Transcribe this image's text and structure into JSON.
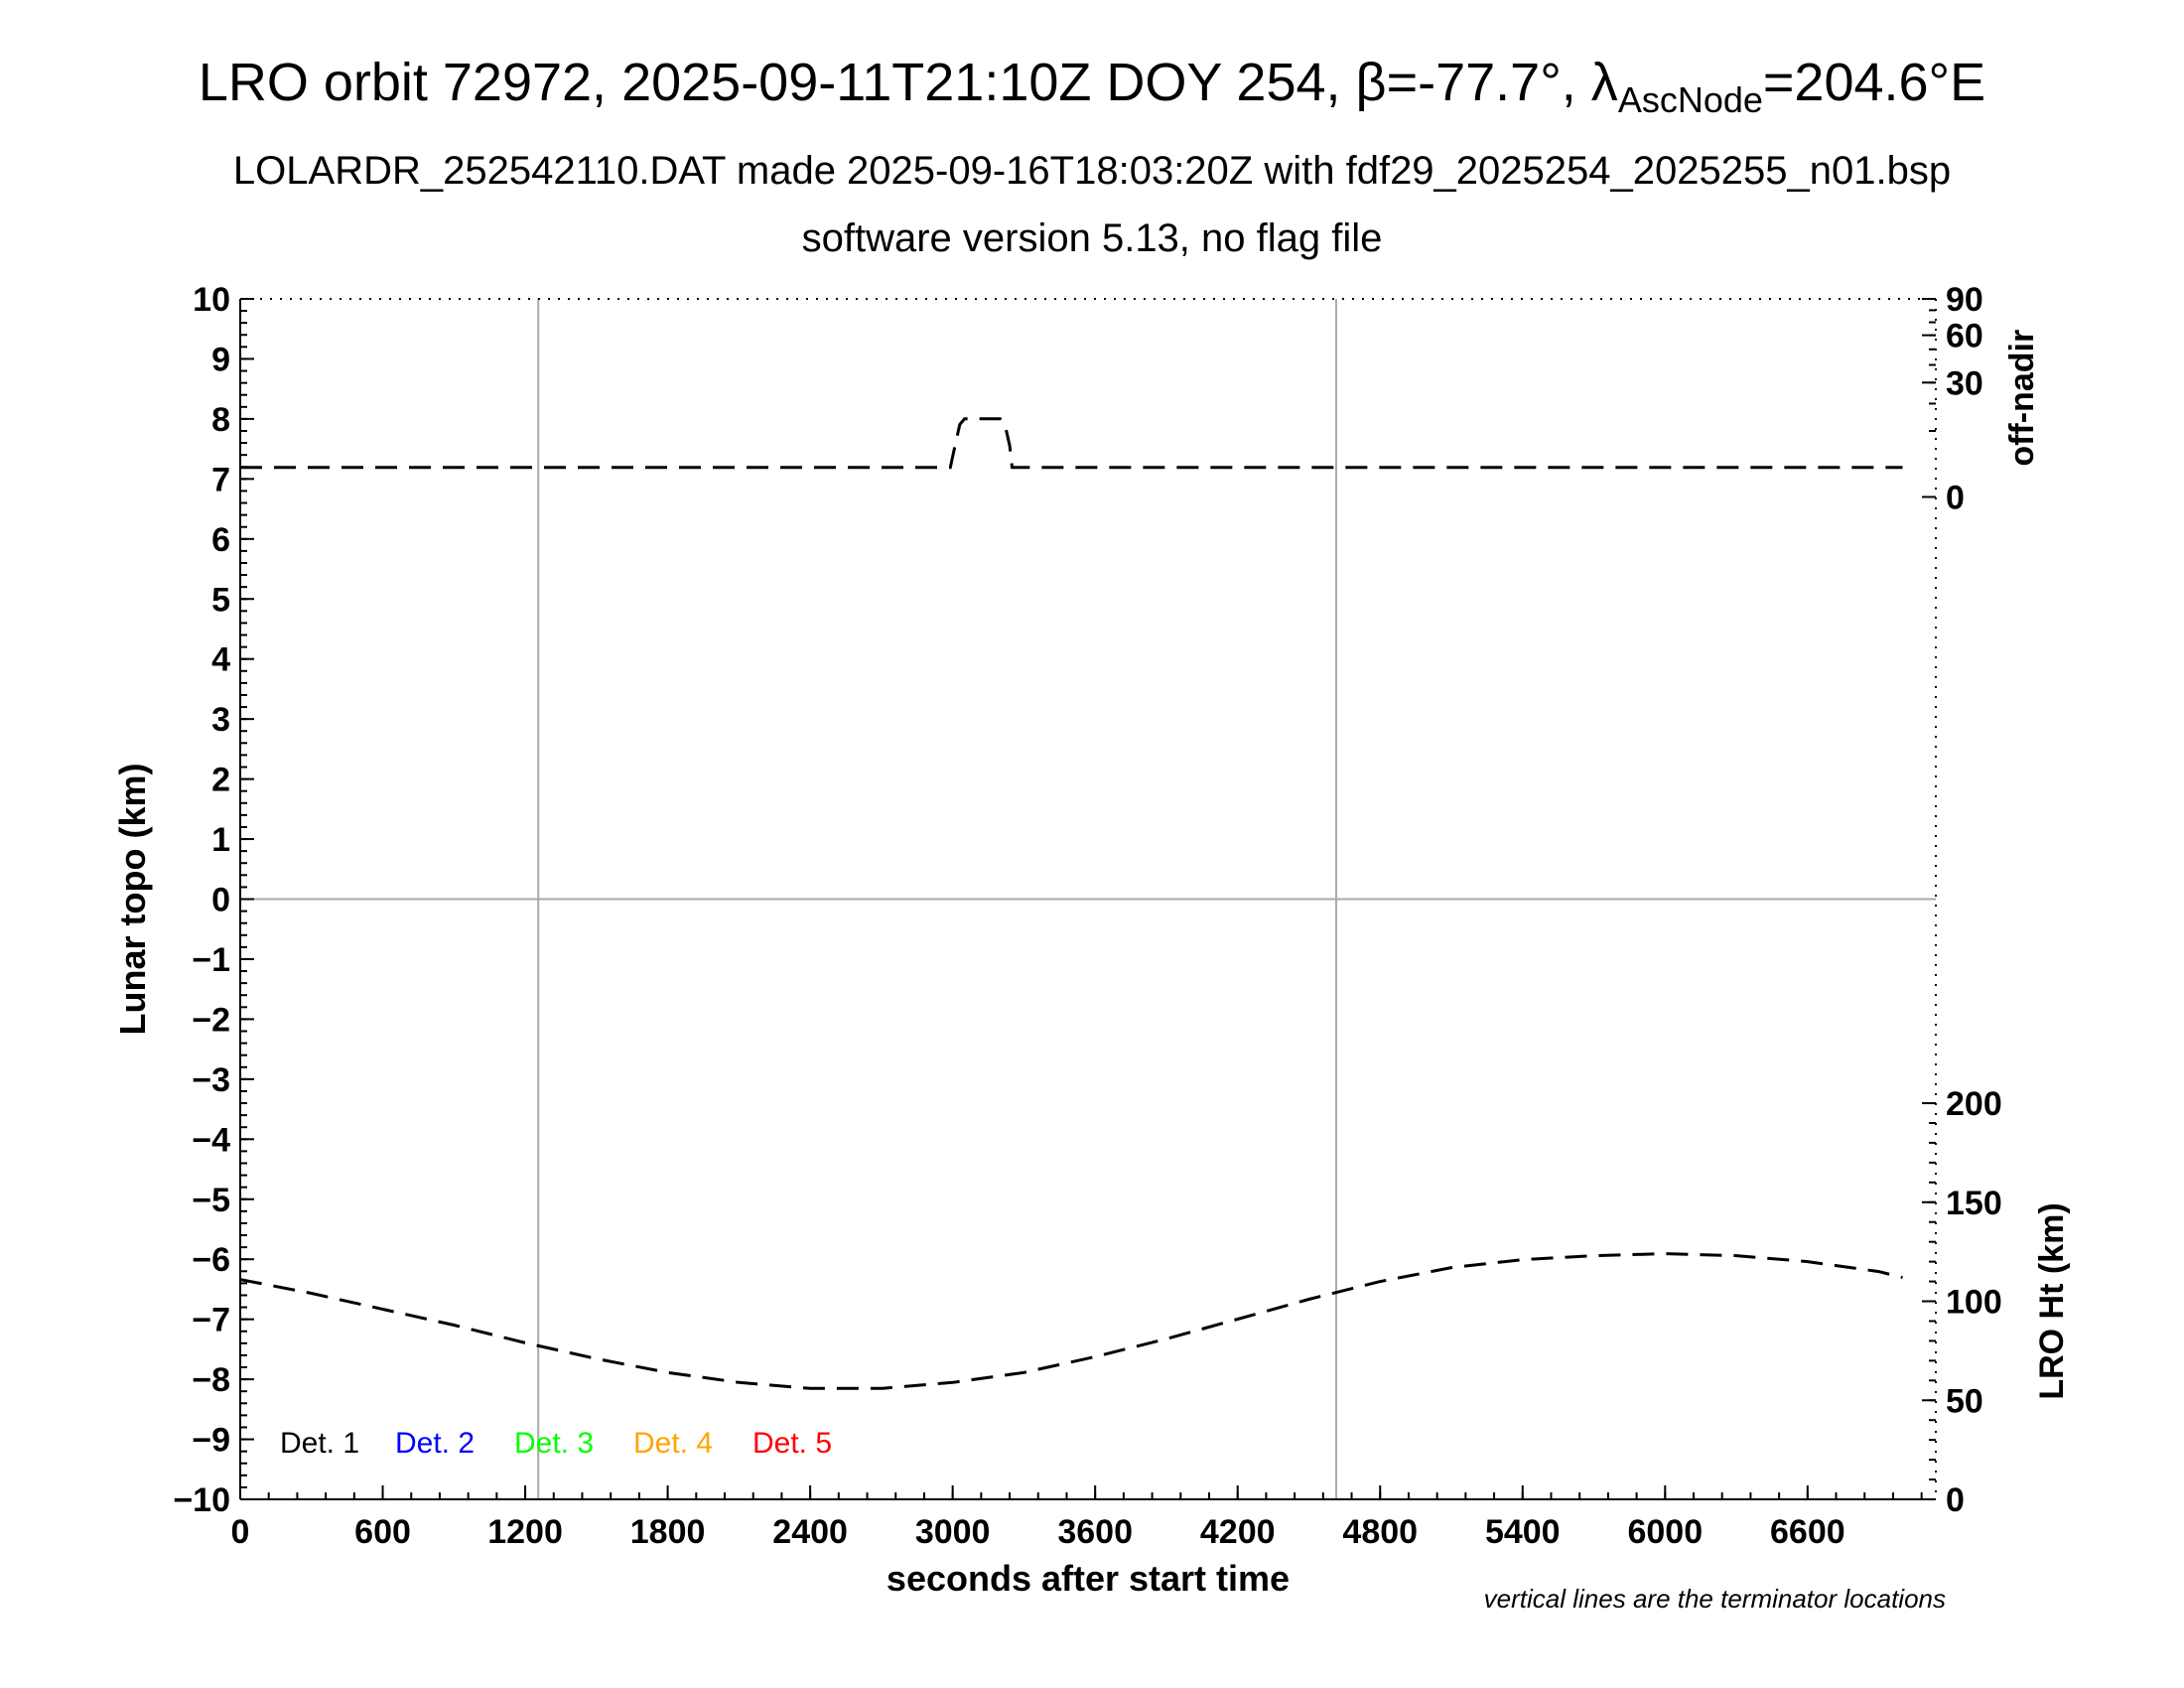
{
  "title": {
    "main_prefix": "LRO orbit 72972, 2025-09-11T21:10Z DOY 254, β=-77.7°, λ",
    "main_subscript": "AscNode",
    "main_suffix": "=204.6°E",
    "line2": "LOLARDR_252542110.DAT made 2025-09-16T18:03:20Z with fdf29_2025254_2025255_n01.bsp",
    "line3": "software version 5.13, no flag file"
  },
  "footnote": "vertical lines are the terminator locations",
  "chart_data": {
    "type": "line",
    "xlabel": "seconds after start time",
    "ylabel": "Lunar topo (km)",
    "xlim": [
      0,
      7140
    ],
    "ylim": [
      -10,
      10
    ],
    "x_ticks": [
      0,
      600,
      1200,
      1800,
      2400,
      3000,
      3600,
      4200,
      4800,
      5400,
      6000,
      6600
    ],
    "y_ticks": [
      10,
      9,
      8,
      7,
      6,
      5,
      4,
      3,
      2,
      1,
      0,
      -1,
      -2,
      -3,
      -4,
      -5,
      -6,
      -7,
      -8,
      -9,
      -10
    ],
    "y_tick_labels": [
      "10",
      "9",
      "8",
      "7",
      "6",
      "5",
      "4",
      "3",
      "2",
      "1",
      "0",
      "−1",
      "−2",
      "−3",
      "−4",
      "−5",
      "−6",
      "−7",
      "−8",
      "−9",
      "−10"
    ],
    "grid": "vertical lines at terminator locations, horizontal line at 0 km",
    "terminator_x": [
      1255,
      4615
    ],
    "zero_line_y": 0,
    "right_axis_top": {
      "label": "off-nadir",
      "ticks": [
        0,
        30,
        60,
        90
      ],
      "note": "nonlinear scale"
    },
    "right_axis_bottom": {
      "label": "LRO Ht (km)",
      "ticks": [
        0,
        50,
        100,
        150,
        200
      ],
      "ylim": [
        0,
        200
      ]
    },
    "legend": {
      "placement": "bottom-left",
      "entries": [
        {
          "label": "Det. 1",
          "color": "#000000"
        },
        {
          "label": "Det. 2",
          "color": "#0000ff"
        },
        {
          "label": "Det. 3",
          "color": "#00ff00"
        },
        {
          "label": "Det. 4",
          "color": "#ffa500"
        },
        {
          "label": "Det. 5",
          "color": "#ff0000"
        }
      ]
    },
    "series": [
      {
        "axis": "right_top",
        "units": "deg",
        "style": "dashed",
        "x": [
          0,
          2980,
          2990,
          3010,
          3030,
          3050,
          3200,
          3220,
          3240,
          3250,
          7000
        ],
        "values": [
          2,
          2,
          2,
          6,
          12,
          14,
          14,
          12,
          6,
          2,
          2
        ]
      },
      {
        "axis": "right_bottom",
        "units": "km",
        "style": "dashed",
        "x": [
          0,
          300,
          600,
          900,
          1200,
          1500,
          1800,
          2100,
          2400,
          2700,
          3000,
          3300,
          3600,
          3900,
          4200,
          4500,
          4800,
          5100,
          5400,
          5700,
          6000,
          6300,
          6600,
          6900,
          7000
        ],
        "values": [
          111,
          104,
          96,
          88,
          79,
          71,
          64,
          59,
          56,
          56,
          59,
          64,
          72,
          81,
          91,
          101,
          110,
          117,
          121,
          123,
          124,
          123,
          120,
          115,
          112
        ]
      }
    ]
  }
}
